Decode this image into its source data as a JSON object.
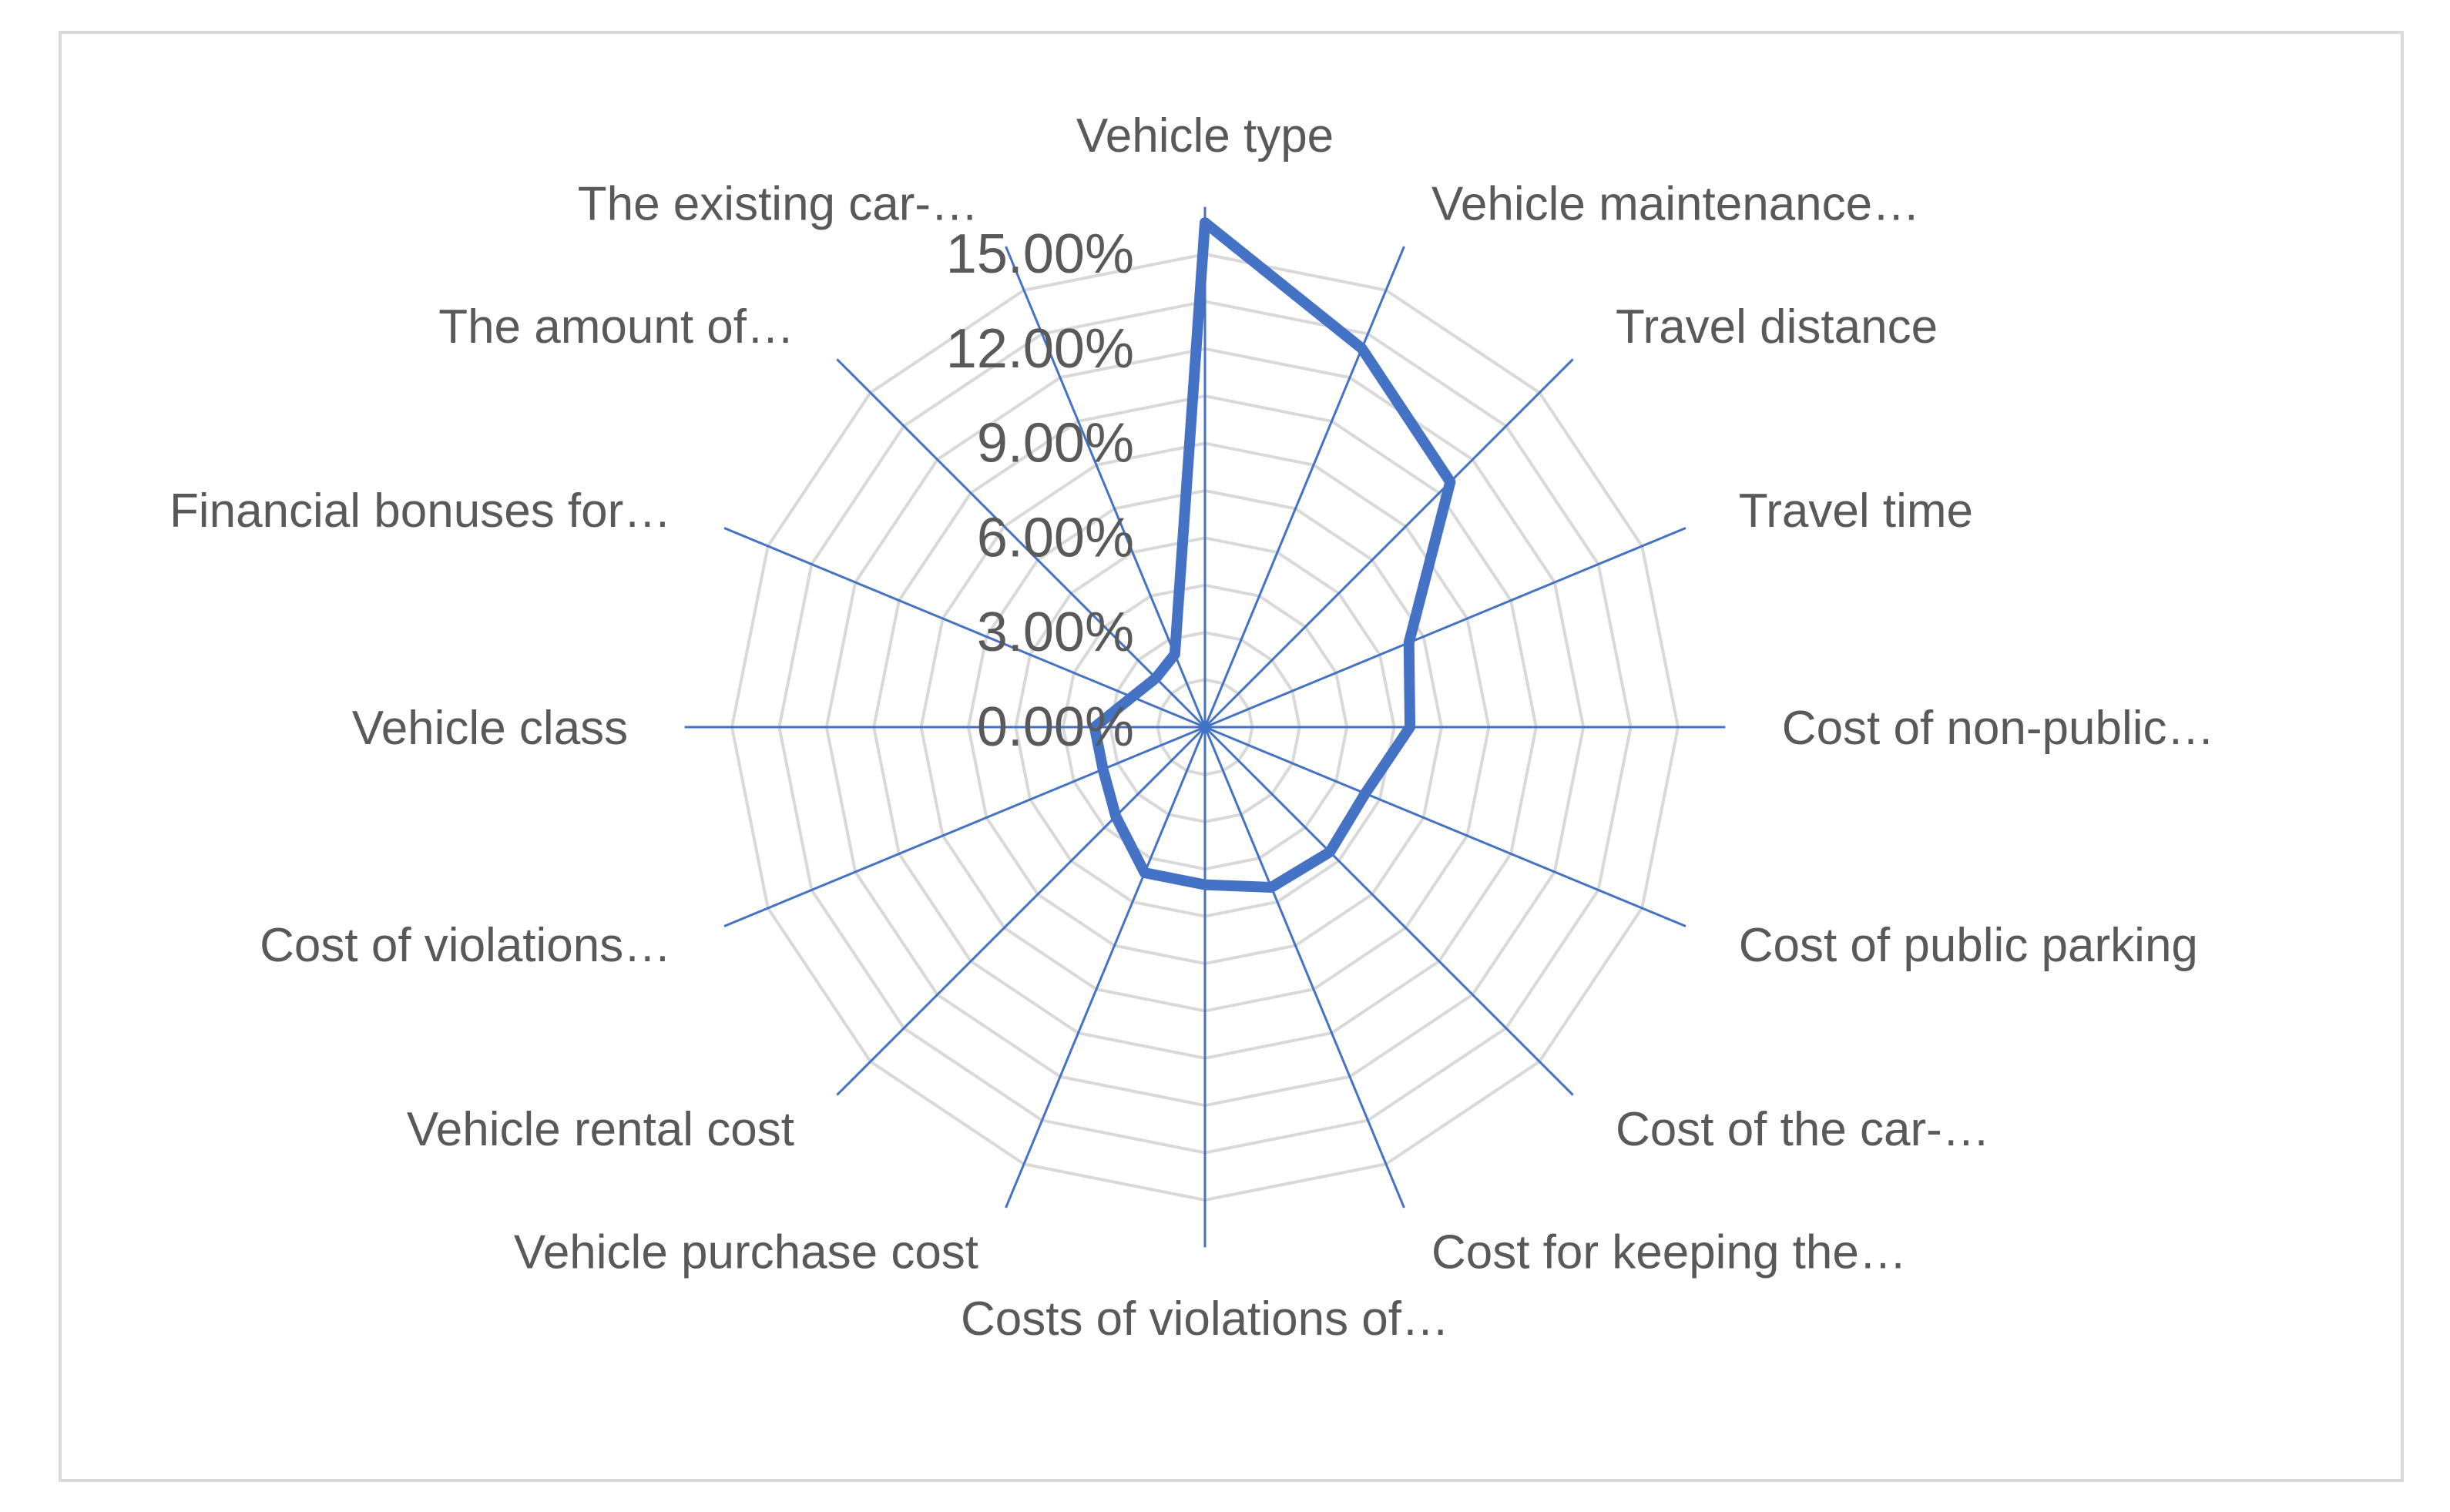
{
  "chart_data": {
    "type": "radar",
    "categories": [
      "Vehicle type",
      "Vehicle maintenance…",
      "Travel distance",
      "Travel time",
      "Cost of non-public…",
      "Cost of public parking",
      "Cost of the car-…",
      "Cost for keeping the…",
      "Costs of violations of…",
      "Vehicle purchase cost",
      "Vehicle rental cost",
      "Cost of violations…",
      "Vehicle class",
      "Financial bonuses for…",
      "The amount of…",
      "The existing car-…"
    ],
    "series": [
      {
        "values": [
          16.0,
          13.0,
          11.0,
          7.0,
          6.5,
          5.5,
          5.6,
          5.5,
          5.0,
          5.0,
          4.0,
          3.5,
          3.5,
          2.5,
          2.2,
          2.5
        ],
        "color": "#4472c4"
      }
    ],
    "tick_labels": [
      "0.00%",
      "3.00%",
      "6.00%",
      "9.00%",
      "12.00%",
      "15.00%"
    ],
    "ticks": [
      0,
      3,
      6,
      9,
      12,
      15
    ],
    "rmax": 15,
    "grid": true,
    "legend": "none",
    "colors": {
      "grid": "#d9d9d9",
      "spoke": "#4472c4",
      "series": "#4472c4",
      "text": "#595959"
    }
  }
}
